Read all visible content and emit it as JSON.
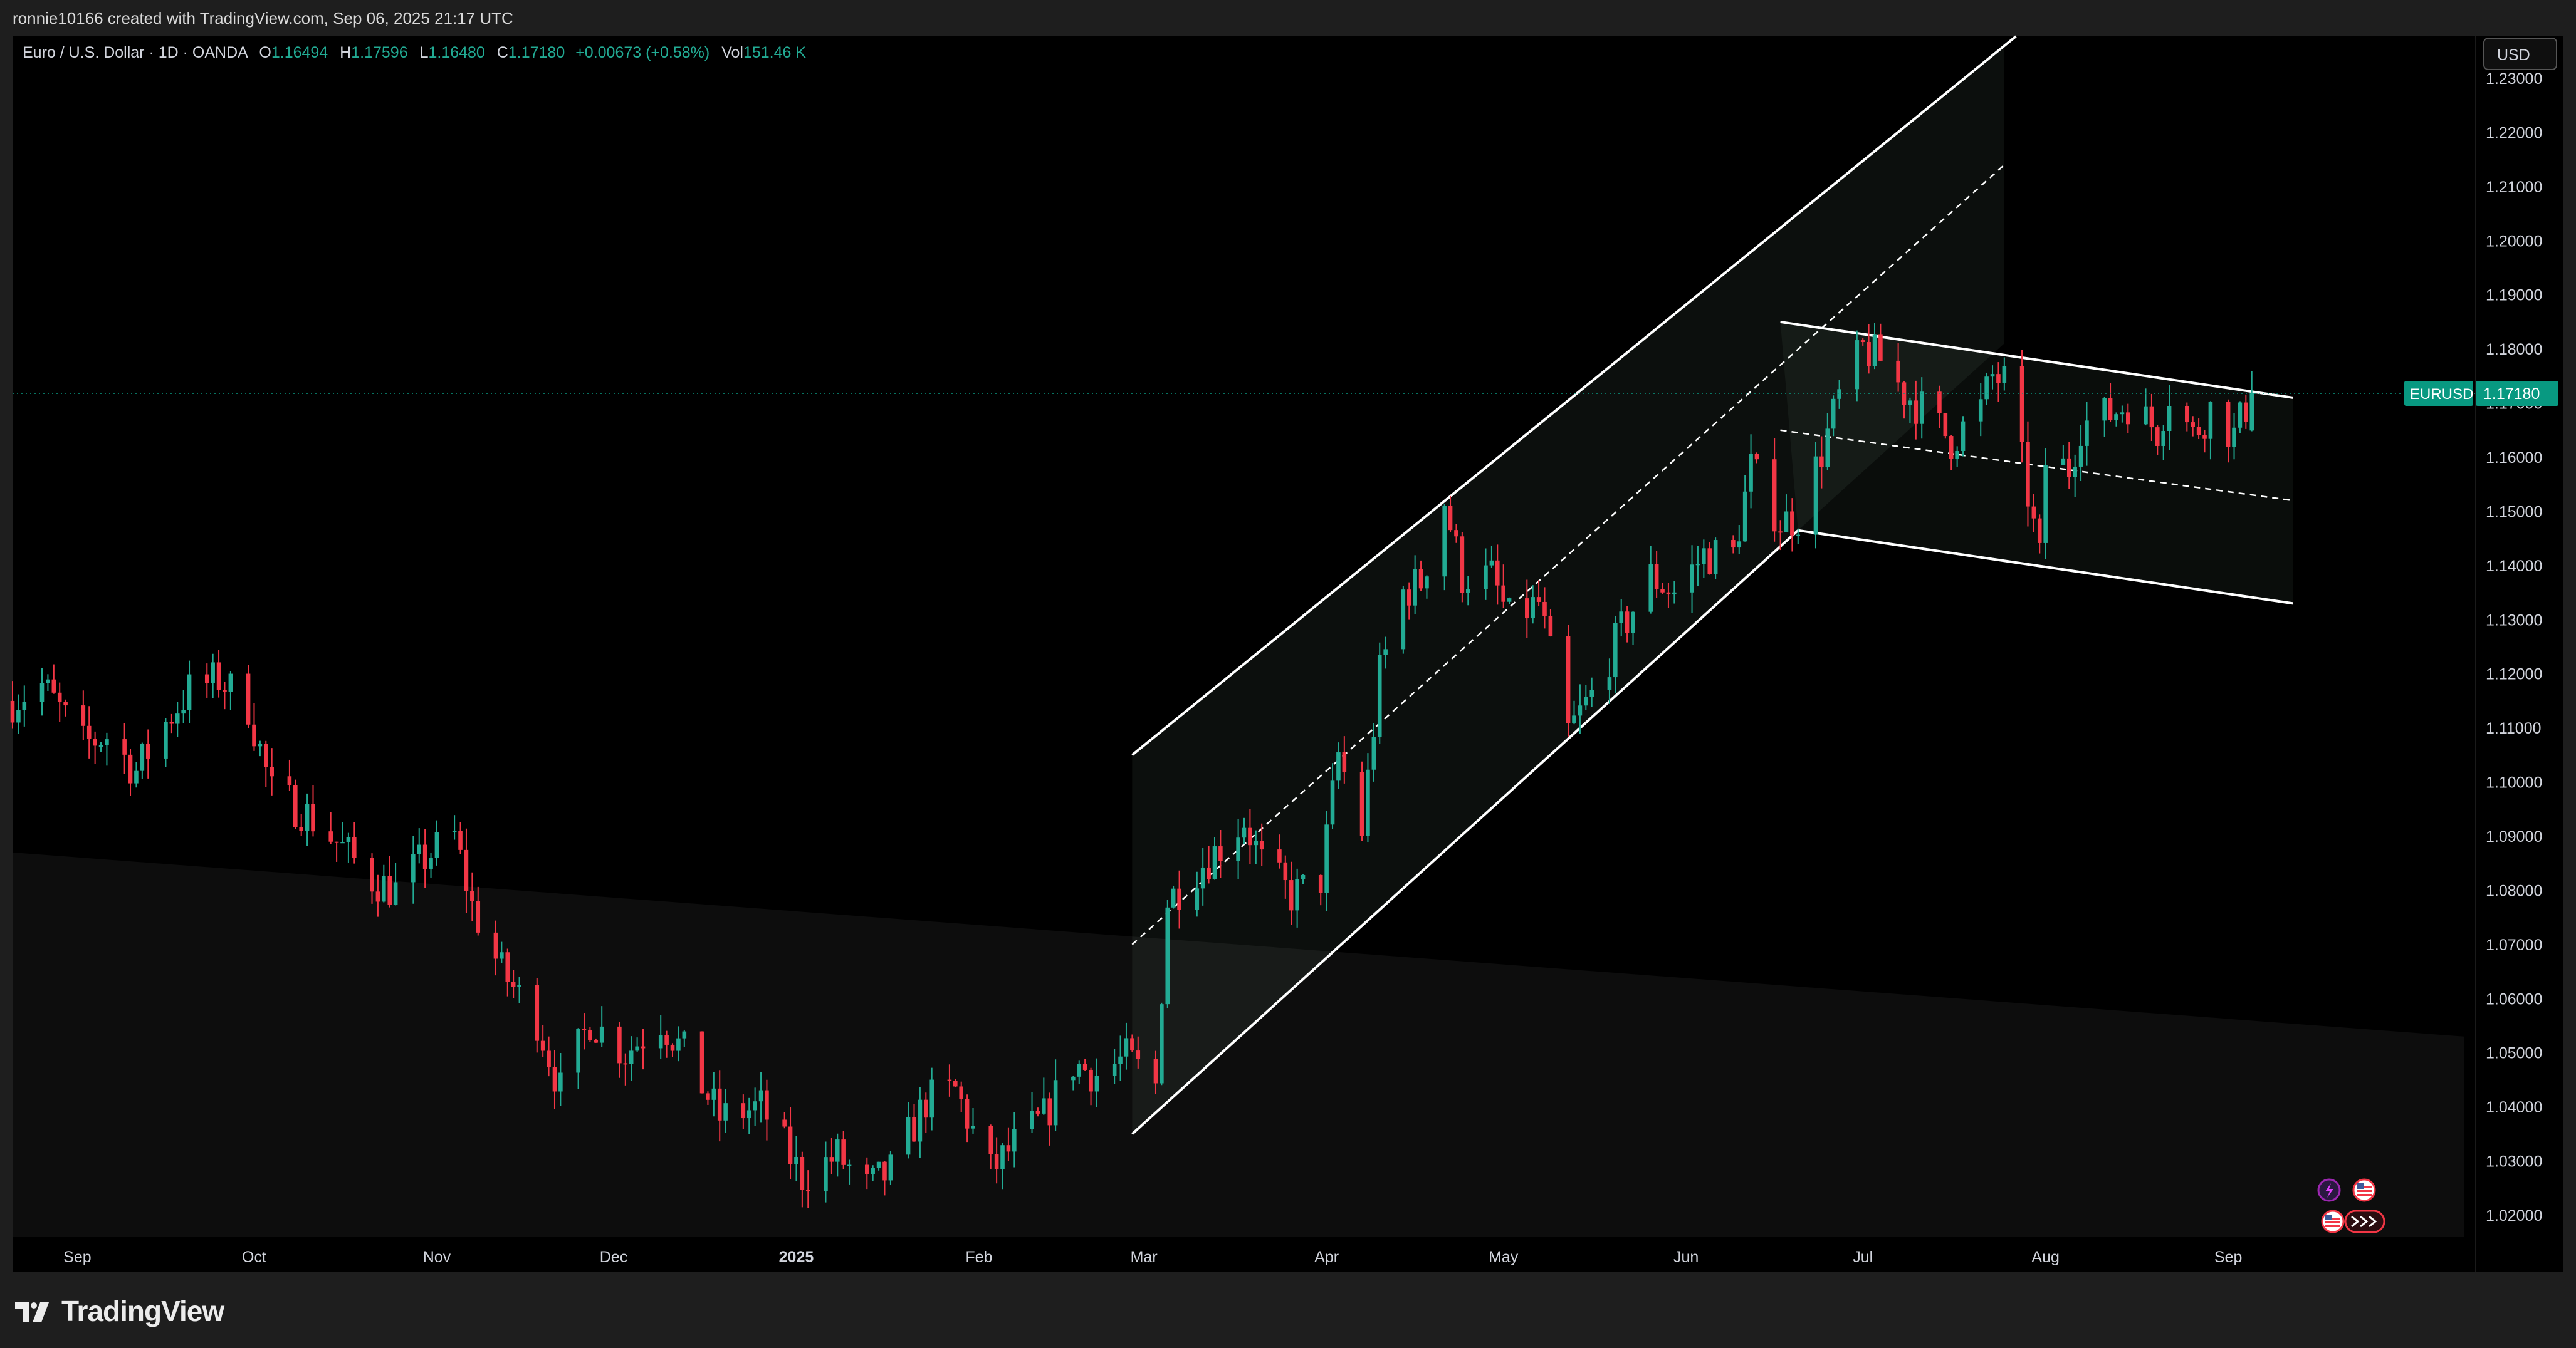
{
  "header": {
    "creator_line": "ronnie10166 created with TradingView.com, Sep 06, 2025 21:17 UTC"
  },
  "legend": {
    "symbol_line": "Euro / U.S. Dollar · 1D · OANDA",
    "open_label": "O",
    "open": "1.16494",
    "high_label": "H",
    "high": "1.17596",
    "low_label": "L",
    "low": "1.16480",
    "close_label": "C",
    "close": "1.17180",
    "change": "+0.00673 (+0.58%)",
    "vol_label": "Vol",
    "vol": "151.46 K"
  },
  "currency_button": "USD",
  "price_tag": {
    "symbol": "EURUSD",
    "price": "1.17180"
  },
  "footer": {
    "brand": "TradingView"
  },
  "colors": {
    "up": "#22ab94",
    "down": "#f23645",
    "line": "#ffffff",
    "background": "#000000",
    "panel": "#1e1e1e",
    "tag": "#089981"
  },
  "icons": [
    "lightning-icon",
    "us-flag-icon",
    "us-flag-icon",
    "right-arrows-icon"
  ],
  "chart_data": {
    "type": "candlestick",
    "symbol": "EURUSD",
    "timeframe": "1D",
    "y_ticks": [
      "1.23000",
      "1.22000",
      "1.21000",
      "1.20000",
      "1.19000",
      "1.18000",
      "1.17000",
      "1.16000",
      "1.15000",
      "1.14000",
      "1.13000",
      "1.12000",
      "1.11000",
      "1.10000",
      "1.09000",
      "1.08000",
      "1.07000",
      "1.06000",
      "1.05000",
      "1.04000",
      "1.03000",
      "1.02000"
    ],
    "y_range": [
      1.012,
      1.235
    ],
    "x_labels": [
      {
        "label": "Sep",
        "date": "2024-09-01"
      },
      {
        "label": "Oct",
        "date": "2024-10-01"
      },
      {
        "label": "Nov",
        "date": "2024-11-01"
      },
      {
        "label": "Dec",
        "date": "2024-12-01"
      },
      {
        "label": "2025",
        "date": "2025-01-01"
      },
      {
        "label": "Feb",
        "date": "2025-02-01"
      },
      {
        "label": "Mar",
        "date": "2025-03-01"
      },
      {
        "label": "Apr",
        "date": "2025-04-01"
      },
      {
        "label": "May",
        "date": "2025-05-01"
      },
      {
        "label": "Jun",
        "date": "2025-06-01"
      },
      {
        "label": "Jul",
        "date": "2025-07-01"
      },
      {
        "label": "Aug",
        "date": "2025-08-01"
      },
      {
        "label": "Sep",
        "date": "2025-09-01"
      }
    ],
    "x_range": [
      "2024-08-21",
      "2025-10-13"
    ],
    "last_price": 1.1718,
    "close_path": [
      {
        "date": "2024-08-21",
        "close": 1.115
      },
      {
        "date": "2024-08-26",
        "close": 1.118
      },
      {
        "date": "2024-09-02",
        "close": 1.107
      },
      {
        "date": "2024-09-06",
        "close": 1.1085
      },
      {
        "date": "2024-09-11",
        "close": 1.102
      },
      {
        "date": "2024-09-16",
        "close": 1.111
      },
      {
        "date": "2024-09-20",
        "close": 1.117
      },
      {
        "date": "2024-09-25",
        "close": 1.119
      },
      {
        "date": "2024-09-30",
        "close": 1.114
      },
      {
        "date": "2024-10-04",
        "close": 1.098
      },
      {
        "date": "2024-10-09",
        "close": 1.095
      },
      {
        "date": "2024-10-15",
        "close": 1.089
      },
      {
        "date": "2024-10-21",
        "close": 1.082
      },
      {
        "date": "2024-10-25",
        "close": 1.08
      },
      {
        "date": "2024-10-30",
        "close": 1.086
      },
      {
        "date": "2024-11-04",
        "close": 1.09
      },
      {
        "date": "2024-11-07",
        "close": 1.077
      },
      {
        "date": "2024-11-12",
        "close": 1.065
      },
      {
        "date": "2024-11-18",
        "close": 1.056
      },
      {
        "date": "2024-11-22",
        "close": 1.043
      },
      {
        "date": "2024-11-27",
        "close": 1.056
      },
      {
        "date": "2024-12-03",
        "close": 1.05
      },
      {
        "date": "2024-12-09",
        "close": 1.056
      },
      {
        "date": "2024-12-13",
        "close": 1.05
      },
      {
        "date": "2024-12-19",
        "close": 1.038
      },
      {
        "date": "2024-12-26",
        "close": 1.04
      },
      {
        "date": "2025-01-02",
        "close": 1.027
      },
      {
        "date": "2025-01-08",
        "close": 1.031
      },
      {
        "date": "2025-01-13",
        "close": 1.025
      },
      {
        "date": "2025-01-17",
        "close": 1.028
      },
      {
        "date": "2025-01-23",
        "close": 1.041
      },
      {
        "date": "2025-01-28",
        "close": 1.043
      },
      {
        "date": "2025-02-03",
        "close": 1.028
      },
      {
        "date": "2025-02-07",
        "close": 1.033
      },
      {
        "date": "2025-02-12",
        "close": 1.038
      },
      {
        "date": "2025-02-17",
        "close": 1.048
      },
      {
        "date": "2025-02-21",
        "close": 1.046
      },
      {
        "date": "2025-02-26",
        "close": 1.049
      },
      {
        "date": "2025-03-03",
        "close": 1.044
      },
      {
        "date": "2025-03-04",
        "close": 1.062
      },
      {
        "date": "2025-03-05",
        "close": 1.078
      },
      {
        "date": "2025-03-10",
        "close": 1.084
      },
      {
        "date": "2025-03-14",
        "close": 1.088
      },
      {
        "date": "2025-03-18",
        "close": 1.093
      },
      {
        "date": "2025-03-21",
        "close": 1.085
      },
      {
        "date": "2025-03-26",
        "close": 1.079
      },
      {
        "date": "2025-03-31",
        "close": 1.082
      },
      {
        "date": "2025-04-03",
        "close": 1.105
      },
      {
        "date": "2025-04-07",
        "close": 1.091
      },
      {
        "date": "2025-04-10",
        "close": 1.12
      },
      {
        "date": "2025-04-14",
        "close": 1.135
      },
      {
        "date": "2025-04-17",
        "close": 1.137
      },
      {
        "date": "2025-04-21",
        "close": 1.152
      },
      {
        "date": "2025-04-24",
        "close": 1.138
      },
      {
        "date": "2025-04-29",
        "close": 1.138
      },
      {
        "date": "2025-05-02",
        "close": 1.13
      },
      {
        "date": "2025-05-07",
        "close": 1.133
      },
      {
        "date": "2025-05-12",
        "close": 1.109
      },
      {
        "date": "2025-05-16",
        "close": 1.116
      },
      {
        "date": "2025-05-21",
        "close": 1.128
      },
      {
        "date": "2025-05-26",
        "close": 1.138
      },
      {
        "date": "2025-05-30",
        "close": 1.135
      },
      {
        "date": "2025-06-04",
        "close": 1.142
      },
      {
        "date": "2025-06-09",
        "close": 1.142
      },
      {
        "date": "2025-06-12",
        "close": 1.158
      },
      {
        "date": "2025-06-17",
        "close": 1.148
      },
      {
        "date": "2025-06-20",
        "close": 1.149
      },
      {
        "date": "2025-06-24",
        "close": 1.161
      },
      {
        "date": "2025-06-27",
        "close": 1.171
      },
      {
        "date": "2025-07-01",
        "close": 1.18
      },
      {
        "date": "2025-07-04",
        "close": 1.178
      },
      {
        "date": "2025-07-08",
        "close": 1.172
      },
      {
        "date": "2025-07-11",
        "close": 1.169
      },
      {
        "date": "2025-07-16",
        "close": 1.163
      },
      {
        "date": "2025-07-21",
        "close": 1.169
      },
      {
        "date": "2025-07-23",
        "close": 1.175
      },
      {
        "date": "2025-07-25",
        "close": 1.174
      },
      {
        "date": "2025-07-28",
        "close": 1.159
      },
      {
        "date": "2025-07-31",
        "close": 1.141
      },
      {
        "date": "2025-08-01",
        "close": 1.159
      },
      {
        "date": "2025-08-05",
        "close": 1.158
      },
      {
        "date": "2025-08-07",
        "close": 1.166
      },
      {
        "date": "2025-08-12",
        "close": 1.168
      },
      {
        "date": "2025-08-15",
        "close": 1.17
      },
      {
        "date": "2025-08-20",
        "close": 1.165
      },
      {
        "date": "2025-08-22",
        "close": 1.172
      },
      {
        "date": "2025-08-26",
        "close": 1.164
      },
      {
        "date": "2025-08-29",
        "close": 1.169
      },
      {
        "date": "2025-09-02",
        "close": 1.164
      },
      {
        "date": "2025-09-05",
        "close": 1.1718
      }
    ],
    "drawings": {
      "rising_channel": {
        "upper": [
          {
            "date": "2025-02-27",
            "price": 1.105
          },
          {
            "date": "2025-07-25",
            "price": 1.236
          }
        ],
        "lower": [
          {
            "date": "2025-02-27",
            "price": 1.035
          },
          {
            "date": "2025-06-20",
            "price": 1.1465
          }
        ],
        "median": [
          {
            "date": "2025-02-27",
            "price": 1.07
          },
          {
            "date": "2025-07-25",
            "price": 1.214
          }
        ],
        "shaded_until": "2025-07-25"
      },
      "falling_channel": {
        "upper": [
          {
            "date": "2025-06-17",
            "price": 1.185
          },
          {
            "date": "2025-09-12",
            "price": 1.171
          }
        ],
        "lower": [
          {
            "date": "2025-06-20",
            "price": 1.1465
          },
          {
            "date": "2025-09-12",
            "price": 1.133
          }
        ],
        "median": [
          {
            "date": "2025-06-17",
            "price": 1.165
          },
          {
            "date": "2025-09-12",
            "price": 1.152
          }
        ]
      },
      "background_band": [
        {
          "date": "2024-08-21",
          "price": 1.087
        },
        {
          "date": "2025-10-11",
          "price": 1.053
        }
      ]
    }
  }
}
